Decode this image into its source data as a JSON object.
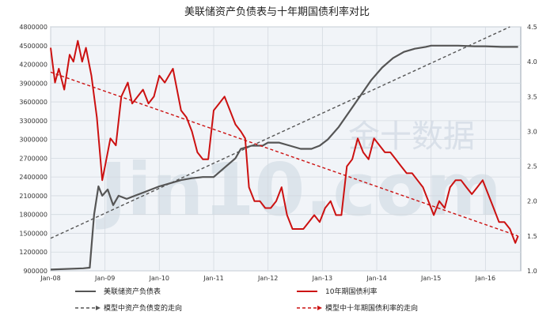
{
  "chart_data": {
    "type": "line",
    "title": "美联储资产负债表与十年期国债利率对比",
    "watermark": "Jin10.com 金十数据",
    "x_ticks": [
      "Jan-08",
      "Jan-09",
      "Jan-10",
      "Jan-11",
      "Jan-12",
      "Jan-13",
      "Jan-14",
      "Jan-15",
      "Jan-16"
    ],
    "x_range": [
      2008.0,
      2016.65
    ],
    "left_axis": {
      "ylim": [
        900000,
        4800000
      ],
      "ticks": [
        "900000",
        "1200000",
        "1500000",
        "1800000",
        "2100000",
        "2400000",
        "2700000",
        "3000000",
        "3300000",
        "3600000",
        "3900000",
        "4200000",
        "4500000",
        "4800000"
      ]
    },
    "right_axis": {
      "ylim": [
        1.0,
        4.5
      ],
      "ticks": [
        "1.0",
        "1.5",
        "2.0",
        "2.5",
        "3.0",
        "3.5",
        "4.0",
        "4.5"
      ]
    },
    "grid": true,
    "legend_position": "bottom",
    "series": [
      {
        "name": "美联储资产负债表",
        "axis": "left",
        "color": "#555555",
        "style": "solid",
        "x": [
          2008.0,
          2008.6,
          2008.72,
          2008.8,
          2008.88,
          2008.95,
          2009.05,
          2009.15,
          2009.25,
          2009.4,
          2009.55,
          2009.7,
          2009.85,
          2010.0,
          2010.2,
          2010.4,
          2010.6,
          2010.8,
          2011.0,
          2011.2,
          2011.4,
          2011.5,
          2011.7,
          2011.9,
          2012.0,
          2012.2,
          2012.4,
          2012.6,
          2012.8,
          2012.95,
          2013.1,
          2013.3,
          2013.5,
          2013.7,
          2013.9,
          2014.1,
          2014.3,
          2014.5,
          2014.7,
          2014.9,
          2015.0,
          2015.2,
          2015.5,
          2015.8,
          2016.0,
          2016.3,
          2016.6
        ],
        "y": [
          920000,
          940000,
          950000,
          1800000,
          2250000,
          2100000,
          2200000,
          1950000,
          2100000,
          2050000,
          2100000,
          2150000,
          2200000,
          2250000,
          2300000,
          2350000,
          2380000,
          2400000,
          2400000,
          2550000,
          2700000,
          2850000,
          2900000,
          2900000,
          2950000,
          2950000,
          2900000,
          2850000,
          2850000,
          2900000,
          3000000,
          3200000,
          3450000,
          3700000,
          3950000,
          4150000,
          4300000,
          4400000,
          4450000,
          4480000,
          4500000,
          4500000,
          4500000,
          4490000,
          4490000,
          4480000,
          4480000
        ]
      },
      {
        "name": "10年期国债利率",
        "axis": "right",
        "color": "#cc1111",
        "style": "solid",
        "x": [
          2008.0,
          2008.08,
          2008.15,
          2008.25,
          2008.35,
          2008.42,
          2008.5,
          2008.58,
          2008.65,
          2008.75,
          2008.85,
          2008.95,
          2009.0,
          2009.1,
          2009.2,
          2009.3,
          2009.42,
          2009.5,
          2009.6,
          2009.7,
          2009.8,
          2009.9,
          2010.0,
          2010.1,
          2010.25,
          2010.4,
          2010.5,
          2010.6,
          2010.7,
          2010.8,
          2010.9,
          2011.0,
          2011.1,
          2011.2,
          2011.3,
          2011.4,
          2011.5,
          2011.58,
          2011.65,
          2011.75,
          2011.85,
          2011.95,
          2012.05,
          2012.15,
          2012.25,
          2012.35,
          2012.45,
          2012.55,
          2012.65,
          2012.75,
          2012.85,
          2012.95,
          2013.05,
          2013.15,
          2013.25,
          2013.35,
          2013.45,
          2013.55,
          2013.65,
          2013.75,
          2013.85,
          2013.95,
          2014.05,
          2014.15,
          2014.25,
          2014.35,
          2014.45,
          2014.55,
          2014.65,
          2014.75,
          2014.85,
          2014.95,
          2015.05,
          2015.15,
          2015.25,
          2015.35,
          2015.45,
          2015.55,
          2015.65,
          2015.75,
          2015.85,
          2015.95,
          2016.05,
          2016.15,
          2016.25,
          2016.35,
          2016.45,
          2016.5,
          2016.55,
          2016.6
        ],
        "y": [
          4.2,
          3.7,
          3.9,
          3.6,
          4.1,
          4.0,
          4.3,
          4.0,
          4.2,
          3.8,
          3.2,
          2.3,
          2.5,
          2.9,
          2.8,
          3.5,
          3.7,
          3.4,
          3.5,
          3.6,
          3.4,
          3.5,
          3.8,
          3.7,
          3.9,
          3.3,
          3.2,
          3.0,
          2.7,
          2.6,
          2.6,
          3.3,
          3.4,
          3.5,
          3.3,
          3.1,
          3.0,
          2.9,
          2.2,
          2.0,
          2.0,
          1.9,
          1.9,
          2.0,
          2.2,
          1.8,
          1.6,
          1.6,
          1.6,
          1.7,
          1.8,
          1.7,
          1.9,
          2.0,
          1.8,
          1.8,
          2.5,
          2.6,
          2.9,
          2.7,
          2.6,
          2.9,
          2.8,
          2.7,
          2.7,
          2.6,
          2.5,
          2.4,
          2.4,
          2.3,
          2.2,
          2.0,
          1.8,
          2.0,
          1.9,
          2.2,
          2.3,
          2.3,
          2.2,
          2.1,
          2.2,
          2.3,
          2.1,
          1.9,
          1.7,
          1.7,
          1.6,
          1.5,
          1.4,
          1.5
        ]
      },
      {
        "name": "模型中资产负债变的走向",
        "axis": "left",
        "color": "#555555",
        "style": "dashed",
        "x": [
          2008.0,
          2016.45
        ],
        "y": [
          1420000,
          4800000
        ]
      },
      {
        "name": "模型中十年期国债利率的走向",
        "axis": "right",
        "color": "#cc1111",
        "style": "dashed",
        "x": [
          2008.0,
          2016.6
        ],
        "y": [
          3.85,
          1.5
        ]
      }
    ]
  }
}
